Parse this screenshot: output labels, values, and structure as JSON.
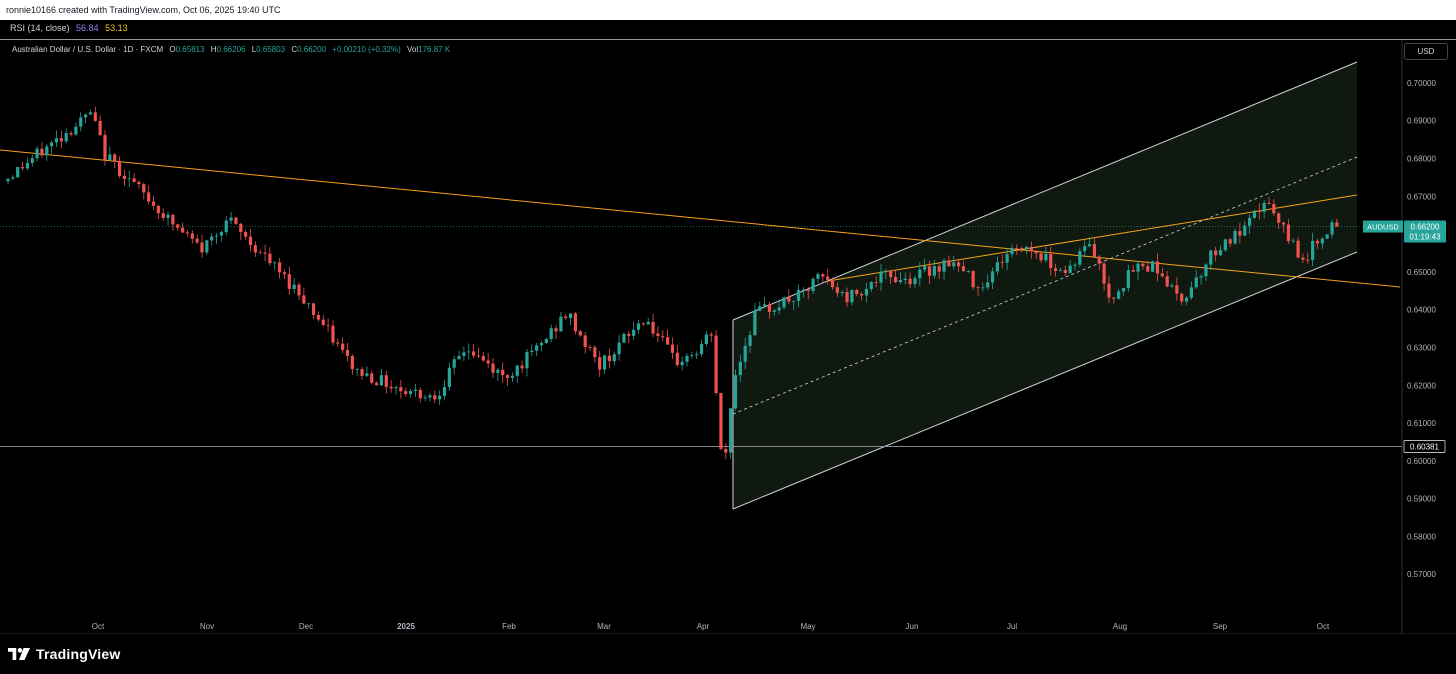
{
  "header": {
    "attribution": "ronnie10166 created with TradingView.com, Oct 06, 2025 19:40 UTC"
  },
  "rsi": {
    "label": "RSI (14, close)",
    "value1": "56.84",
    "value2": "53.13",
    "color1": "#9c7cff",
    "color2": "#f0c419"
  },
  "legend": {
    "symbol": "Australian Dollar / U.S. Dollar · 1D · FXCM",
    "open_k": "O",
    "open_v": "0.65813",
    "high_k": "H",
    "high_v": "0.66206",
    "low_k": "L",
    "low_v": "0.65803",
    "close_k": "C",
    "close_v": "0.66200",
    "change": "+0.00210 (+0.32%)",
    "vol_k": "Vol",
    "vol_v": "176.87 K"
  },
  "currency_button": "USD",
  "brand": "TradingView",
  "chart_data": {
    "type": "candlestick",
    "symbol": "AUDUSD",
    "y_ticks": [
      "0.70000",
      "0.69000",
      "0.68000",
      "0.67000",
      "0.66000",
      "0.65000",
      "0.64000",
      "0.63000",
      "0.62000",
      "0.61000",
      "0.60000",
      "0.59000",
      "0.58000",
      "0.57000"
    ],
    "ylim": [
      0.5645,
      0.7062
    ],
    "x_ticks": [
      "Oct",
      "Nov",
      "Dec",
      "2025",
      "Feb",
      "Mar",
      "Apr",
      "May",
      "Jun",
      "Jul",
      "Aug",
      "Sep",
      "Oct"
    ],
    "last_price_label": "AUDUSD",
    "last_price": "0.66200",
    "countdown": "01:19:43",
    "horizontal_level": "0.60381",
    "colors": {
      "up": "#26a69a",
      "down": "#ef5350",
      "channel": "#d1d4dc",
      "trendline": "#f7a21b",
      "channel_fill": "#1b2e1b"
    },
    "key_points": [
      {
        "date": "Sep 2024",
        "close": 0.674
      },
      {
        "date": "Sep 30 2024",
        "close": 0.692
      },
      {
        "date": "Nov 2024",
        "close": 0.656
      },
      {
        "date": "Dec 2024",
        "close": 0.644
      },
      {
        "date": "Jan 2025",
        "close": 0.619
      },
      {
        "date": "Feb 2025",
        "close": 0.622
      },
      {
        "date": "Mar 2025",
        "close": 0.635
      },
      {
        "date": "Apr 2025",
        "close": 0.629
      },
      {
        "date": "Apr 8 2025",
        "close": 0.595
      },
      {
        "date": "May 2025",
        "close": 0.645
      },
      {
        "date": "Jun 2025",
        "close": 0.648
      },
      {
        "date": "Jul 2025",
        "close": 0.656
      },
      {
        "date": "Aug 2025",
        "close": 0.646
      },
      {
        "date": "Sep 17 2025",
        "close": 0.669
      },
      {
        "date": "Oct 6 2025",
        "close": 0.662
      }
    ]
  }
}
